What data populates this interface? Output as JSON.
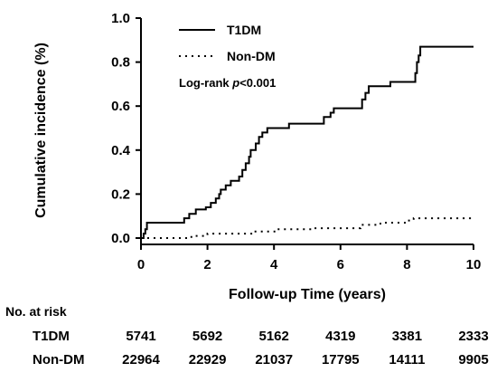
{
  "chart_data": {
    "type": "line",
    "subtype": "step",
    "xlabel": "Follow-up Time (years)",
    "ylabel": "Cumulative incidence (%)",
    "xlim": [
      0,
      10
    ],
    "ylim": [
      0,
      1.0
    ],
    "x_ticks": [
      "0",
      "2",
      "4",
      "6",
      "8",
      "10"
    ],
    "y_ticks": [
      "0.0",
      "0.2",
      "0.4",
      "0.6",
      "0.8",
      "1.0"
    ],
    "grid": false,
    "legend_position": "top-left",
    "annotation_prefix": "Log-rank ",
    "annotation_p": "p",
    "annotation_suffix": "<0.001",
    "series": [
      {
        "name": "T1DM",
        "style": "solid",
        "points": [
          [
            0,
            0
          ],
          [
            0.08,
            0.02
          ],
          [
            0.13,
            0.04
          ],
          [
            0.18,
            0.07
          ],
          [
            1.25,
            0.07
          ],
          [
            1.3,
            0.09
          ],
          [
            1.45,
            0.11
          ],
          [
            1.65,
            0.13
          ],
          [
            1.95,
            0.14
          ],
          [
            2.1,
            0.16
          ],
          [
            2.25,
            0.18
          ],
          [
            2.35,
            0.2
          ],
          [
            2.4,
            0.22
          ],
          [
            2.55,
            0.24
          ],
          [
            2.7,
            0.26
          ],
          [
            2.95,
            0.28
          ],
          [
            3.05,
            0.31
          ],
          [
            3.15,
            0.34
          ],
          [
            3.25,
            0.37
          ],
          [
            3.3,
            0.4
          ],
          [
            3.45,
            0.43
          ],
          [
            3.55,
            0.46
          ],
          [
            3.65,
            0.48
          ],
          [
            3.8,
            0.5
          ],
          [
            4.4,
            0.5
          ],
          [
            4.45,
            0.52
          ],
          [
            5.5,
            0.52
          ],
          [
            5.5,
            0.55
          ],
          [
            5.7,
            0.57
          ],
          [
            5.8,
            0.59
          ],
          [
            6.6,
            0.59
          ],
          [
            6.65,
            0.63
          ],
          [
            6.75,
            0.66
          ],
          [
            6.85,
            0.69
          ],
          [
            7.45,
            0.69
          ],
          [
            7.5,
            0.71
          ],
          [
            8.2,
            0.71
          ],
          [
            8.25,
            0.75
          ],
          [
            8.3,
            0.8
          ],
          [
            8.35,
            0.83
          ],
          [
            8.4,
            0.87
          ],
          [
            10,
            0.87
          ]
        ]
      },
      {
        "name": "Non-DM",
        "style": "dotted",
        "points": [
          [
            0,
            0
          ],
          [
            1.3,
            0
          ],
          [
            1.4,
            0.005
          ],
          [
            1.6,
            0.01
          ],
          [
            2,
            0.02
          ],
          [
            3.4,
            0.03
          ],
          [
            4.1,
            0.04
          ],
          [
            5.2,
            0.045
          ],
          [
            6.6,
            0.06
          ],
          [
            7.2,
            0.07
          ],
          [
            8,
            0.08
          ],
          [
            8.2,
            0.09
          ],
          [
            10,
            0.09
          ]
        ]
      }
    ]
  },
  "risk_table": {
    "title": "No. at risk",
    "rows": [
      {
        "label": "T1DM",
        "values": [
          "5741",
          "5692",
          "5162",
          "4319",
          "3381",
          "2333"
        ]
      },
      {
        "label": "Non-DM",
        "values": [
          "22964",
          "22929",
          "21037",
          "17795",
          "14111",
          "9905"
        ]
      }
    ]
  }
}
